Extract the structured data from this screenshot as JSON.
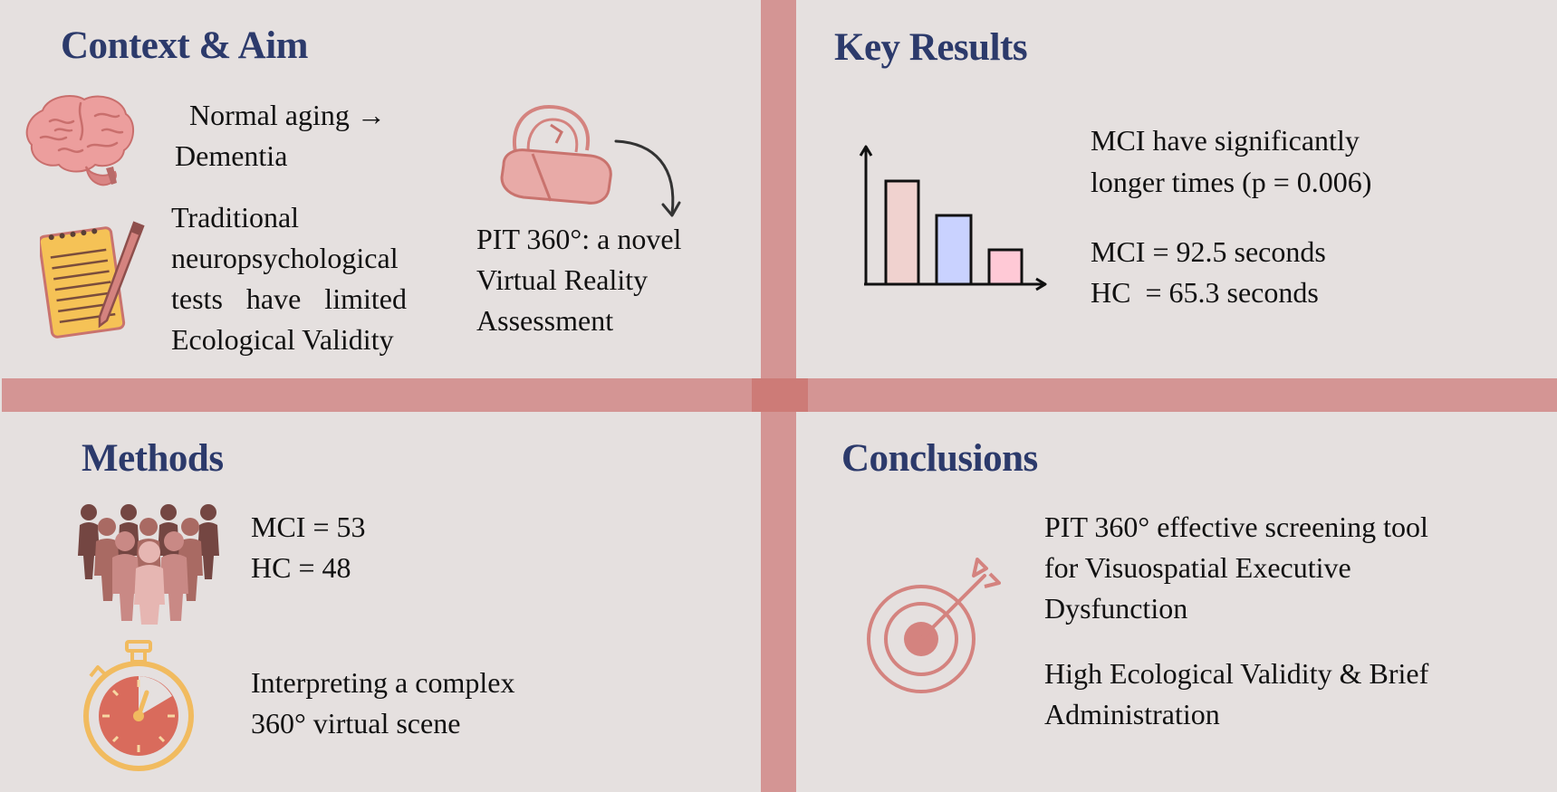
{
  "colors": {
    "background": "#e5e0df",
    "divider": "#d49594",
    "heading": "#2c3a6b",
    "icon_pink": "#d4837f",
    "icon_gold": "#f1bb5f"
  },
  "context": {
    "heading": "Context & Aim",
    "aging_line1": "Normal aging →",
    "aging_line2": "Dementia",
    "tests_line1": "Traditional",
    "tests_line2": "neuropsychological",
    "tests_line3": "tests have limited",
    "tests_line4": "Ecological Validity",
    "pit_line1": "PIT 360°: a novel",
    "pit_line2": "Virtual Reality",
    "pit_line3": "Assessment",
    "icons": [
      "brain-icon",
      "notepad-pencil-icon",
      "vr-headset-icon",
      "curved-arrow-icon"
    ]
  },
  "results": {
    "heading": "Key Results",
    "finding_line1": "MCI have significantly",
    "finding_line2": "longer times (p = 0.006)",
    "mci_time": "MCI = 92.5 seconds",
    "hc_time": "HC  = 65.3 seconds",
    "icons": [
      "bar-chart-icon"
    ]
  },
  "methods": {
    "heading": "Methods",
    "mci_count": "MCI = 53",
    "hc_count": "HC = 48",
    "task_line1": "Interpreting a complex",
    "task_line2": "360° virtual scene",
    "icons": [
      "people-group-icon",
      "stopwatch-icon"
    ]
  },
  "conclusions": {
    "heading": "Conclusions",
    "c1_line1": "PIT 360° effective screening tool",
    "c1_line2": "for Visuospatial Executive",
    "c1_line3": "Dysfunction",
    "c2_line1": "High Ecological Validity & Brief",
    "c2_line2": "Administration",
    "icons": [
      "target-arrow-icon"
    ]
  }
}
